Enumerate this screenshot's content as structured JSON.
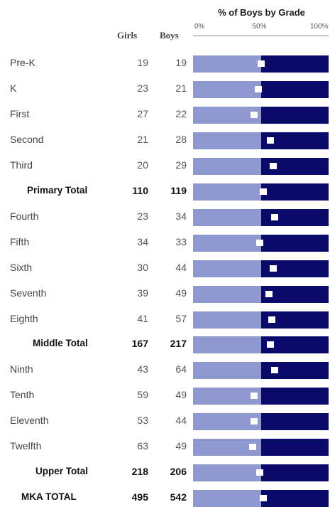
{
  "chart_data": {
    "type": "bar",
    "orientation": "horizontal",
    "stacked_percent": true,
    "title_partial": "",
    "chart_title": "% of Boys by Grade",
    "columns": {
      "girls": "Girls",
      "boys": "Boys"
    },
    "axis_ticks": [
      "0%",
      "50%",
      "100%"
    ],
    "xlim": [
      0,
      100
    ],
    "colors": {
      "girls": "#8f98d1",
      "boys": "#0a0a6b",
      "marker": "#ffffff"
    },
    "rows": [
      {
        "label": "Pre-K",
        "girls": 19,
        "boys": 19,
        "total": false,
        "marker_pct": 50
      },
      {
        "label": "K",
        "girls": 23,
        "boys": 21,
        "total": false,
        "marker_pct": 48
      },
      {
        "label": "First",
        "girls": 27,
        "boys": 22,
        "total": false,
        "marker_pct": 45
      },
      {
        "label": "Second",
        "girls": 21,
        "boys": 28,
        "total": false,
        "marker_pct": 57
      },
      {
        "label": "Third",
        "girls": 20,
        "boys": 29,
        "total": false,
        "marker_pct": 59
      },
      {
        "label": "Primary Total",
        "girls": 110,
        "boys": 119,
        "total": true,
        "marker_pct": 52
      },
      {
        "label": "Fourth",
        "girls": 23,
        "boys": 34,
        "total": false,
        "marker_pct": 60
      },
      {
        "label": "Fifth",
        "girls": 34,
        "boys": 33,
        "total": false,
        "marker_pct": 49
      },
      {
        "label": "Sixth",
        "girls": 30,
        "boys": 44,
        "total": false,
        "marker_pct": 59
      },
      {
        "label": "Seventh",
        "girls": 39,
        "boys": 49,
        "total": false,
        "marker_pct": 56
      },
      {
        "label": "Eighth",
        "girls": 41,
        "boys": 57,
        "total": false,
        "marker_pct": 58
      },
      {
        "label": "Middle Total",
        "girls": 167,
        "boys": 217,
        "total": true,
        "marker_pct": 57
      },
      {
        "label": "Ninth",
        "girls": 43,
        "boys": 64,
        "total": false,
        "marker_pct": 60
      },
      {
        "label": "Tenth",
        "girls": 59,
        "boys": 49,
        "total": false,
        "marker_pct": 45
      },
      {
        "label": "Eleventh",
        "girls": 53,
        "boys": 44,
        "total": false,
        "marker_pct": 45
      },
      {
        "label": "Twelfth",
        "girls": 63,
        "boys": 49,
        "total": false,
        "marker_pct": 44
      },
      {
        "label": "Upper Total",
        "girls": 218,
        "boys": 206,
        "total": true,
        "marker_pct": 49
      },
      {
        "label": "MKA TOTAL",
        "girls": 495,
        "boys": 542,
        "total": true,
        "marker_pct": 52
      }
    ]
  }
}
